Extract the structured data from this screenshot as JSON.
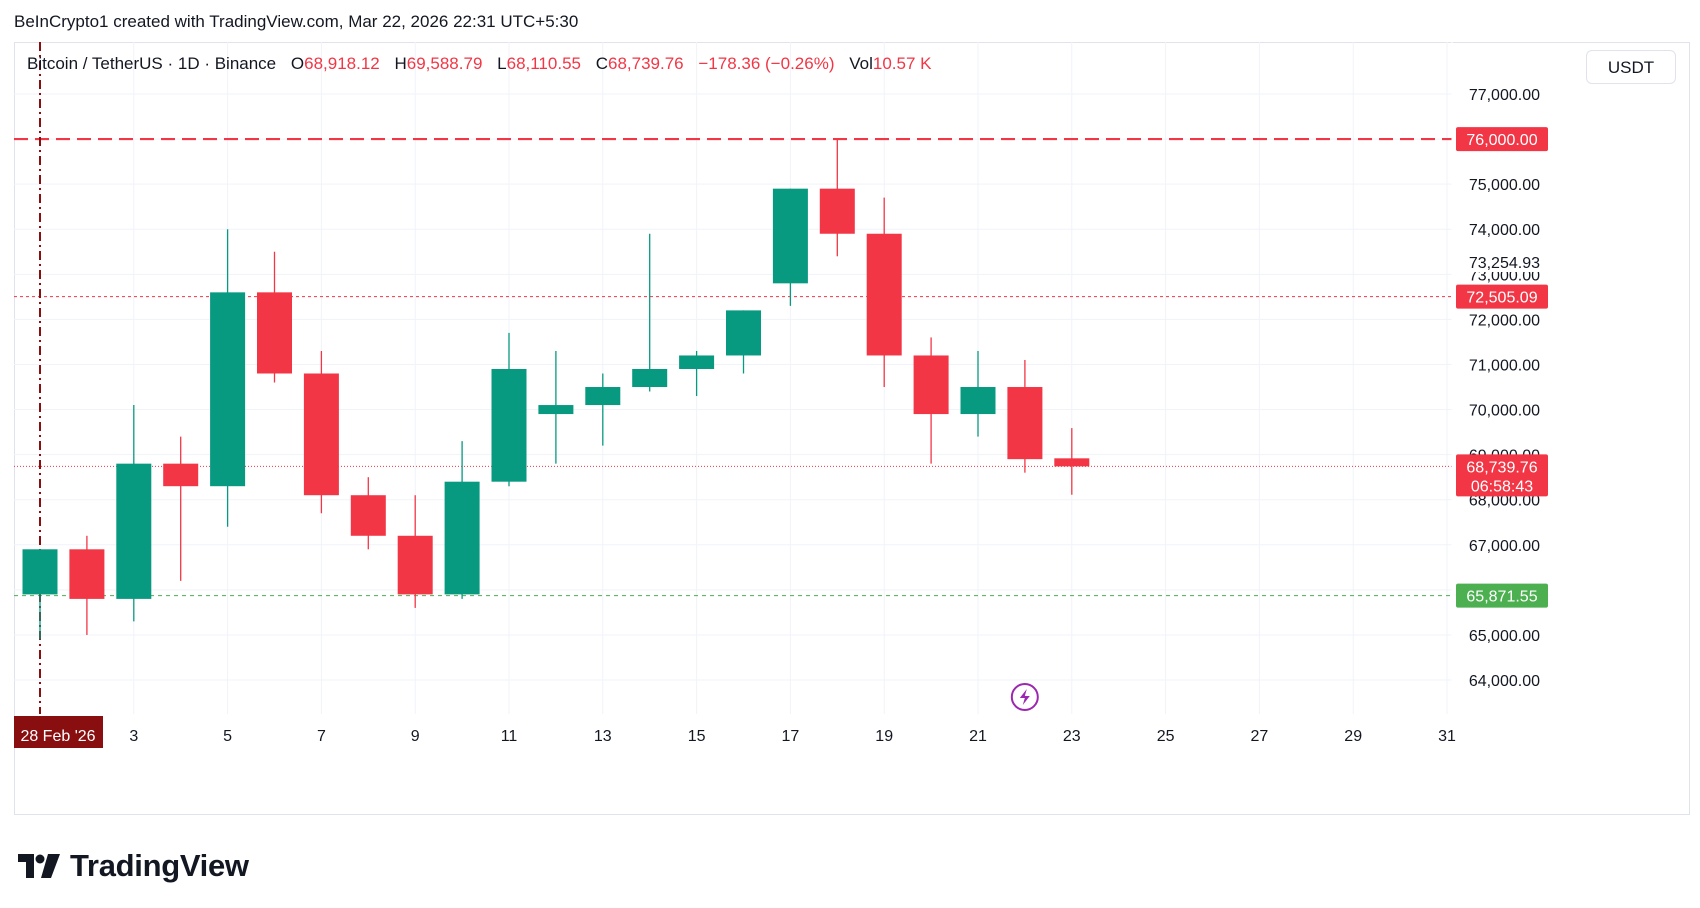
{
  "header": {
    "credit": "BeInCrypto1 created with TradingView.com, Mar 22, 2026 22:31 UTC+5:30"
  },
  "legend": {
    "symbol": "Bitcoin / TetherUS · 1D · Binance",
    "open_label": "O",
    "open": "68,918.12",
    "high_label": "H",
    "high": "69,588.79",
    "low_label": "L",
    "low": "68,110.55",
    "close_label": "C",
    "close": "68,739.76",
    "change": "−178.36 (−0.26%)",
    "vol_label": "Vol",
    "vol": "10.57 K"
  },
  "currency_button": "USDT",
  "footer": {
    "brand": "TradingView"
  },
  "colors": {
    "up": "#089981",
    "down": "#f23645",
    "grid": "#f0f3fa",
    "resistance": "#f23645",
    "support": "#4caf50",
    "cursor": "#880e10",
    "bolt": "#9c27b0"
  },
  "icons": {
    "event": "lightning-icon",
    "brand": "tradingview-logo-icon"
  },
  "chart_data": {
    "type": "candlestick",
    "ylim": [
      63300,
      78000
    ],
    "price_ticks": [
      64000,
      65000,
      66000,
      67000,
      68000,
      69000,
      70000,
      71000,
      72000,
      73000,
      74000,
      75000,
      76000,
      77000
    ],
    "price_tick_labels": [
      "64,000.00",
      "65,000.00",
      "66,000.00",
      "67,000.00",
      "68,000.00",
      "69,000.00",
      "70,000.00",
      "71,000.00",
      "72,000.00",
      "73,000.00",
      "74,000.00",
      "75,000.00",
      "76,000.00",
      "77,000.00"
    ],
    "x_tick_days": [
      28,
      30,
      32,
      34,
      36,
      38,
      40,
      42,
      44,
      46,
      48,
      50,
      52,
      54,
      56,
      58
    ],
    "x_tick_labels": [
      "28 Feb '26",
      "3",
      "5",
      "7",
      "9",
      "11",
      "13",
      "15",
      "17",
      "19",
      "21",
      "23",
      "25",
      "27",
      "29",
      "31"
    ],
    "candles": [
      {
        "date": "2026-02-28",
        "o": 65900,
        "h": 66900,
        "l": 64900,
        "c": 66900
      },
      {
        "date": "2026-03-01",
        "o": 66900,
        "h": 67200,
        "l": 65000,
        "c": 65800
      },
      {
        "date": "2026-03-02",
        "o": 65800,
        "h": 70100,
        "l": 65300,
        "c": 68800
      },
      {
        "date": "2026-03-03",
        "o": 68800,
        "h": 69400,
        "l": 66200,
        "c": 68300
      },
      {
        "date": "2026-03-04",
        "o": 68300,
        "h": 74000,
        "l": 67400,
        "c": 72600
      },
      {
        "date": "2026-03-05",
        "o": 72600,
        "h": 73500,
        "l": 70600,
        "c": 70800
      },
      {
        "date": "2026-03-06",
        "o": 70800,
        "h": 71300,
        "l": 67700,
        "c": 68100
      },
      {
        "date": "2026-03-07",
        "o": 68100,
        "h": 68500,
        "l": 66900,
        "c": 67200
      },
      {
        "date": "2026-03-08",
        "o": 67200,
        "h": 68100,
        "l": 65600,
        "c": 65900
      },
      {
        "date": "2026-03-09",
        "o": 65900,
        "h": 69300,
        "l": 65800,
        "c": 68400
      },
      {
        "date": "2026-03-10",
        "o": 68400,
        "h": 71700,
        "l": 68300,
        "c": 70900
      },
      {
        "date": "2026-03-11",
        "o": 69900,
        "h": 71300,
        "l": 68800,
        "c": 70100
      },
      {
        "date": "2026-03-12",
        "o": 70100,
        "h": 70800,
        "l": 69200,
        "c": 70500
      },
      {
        "date": "2026-03-13",
        "o": 70500,
        "h": 73900,
        "l": 70400,
        "c": 70900
      },
      {
        "date": "2026-03-14",
        "o": 70900,
        "h": 71300,
        "l": 70300,
        "c": 71200
      },
      {
        "date": "2026-03-15",
        "o": 71200,
        "h": 72200,
        "l": 70800,
        "c": 72200
      },
      {
        "date": "2026-03-16",
        "o": 72800,
        "h": 74900,
        "l": 72300,
        "c": 74900
      },
      {
        "date": "2026-03-17",
        "o": 74900,
        "h": 76000,
        "l": 73400,
        "c": 73900
      },
      {
        "date": "2026-03-18",
        "o": 73900,
        "h": 74700,
        "l": 70500,
        "c": 71200
      },
      {
        "date": "2026-03-19",
        "o": 71200,
        "h": 71600,
        "l": 68800,
        "c": 69900
      },
      {
        "date": "2026-03-20",
        "o": 69900,
        "h": 71300,
        "l": 69400,
        "c": 70500
      },
      {
        "date": "2026-03-21",
        "o": 70500,
        "h": 71100,
        "l": 68600,
        "c": 68900
      },
      {
        "date": "2026-03-22",
        "o": 68918.12,
        "h": 69588.79,
        "l": 68110.55,
        "c": 68739.76
      }
    ],
    "levels": [
      {
        "price": 76000,
        "label": "76,000.00",
        "style": "resistance"
      },
      {
        "price": 72505.09,
        "label": "72,505.09",
        "style": "mid"
      },
      {
        "price": 68739.76,
        "label": "68,739.76",
        "sublabel": "06:58:43",
        "style": "last"
      },
      {
        "price": 65871.55,
        "label": "65,871.55",
        "style": "support"
      }
    ],
    "crosshair_price_label": "73,254.93",
    "event_marker_day": 50
  }
}
